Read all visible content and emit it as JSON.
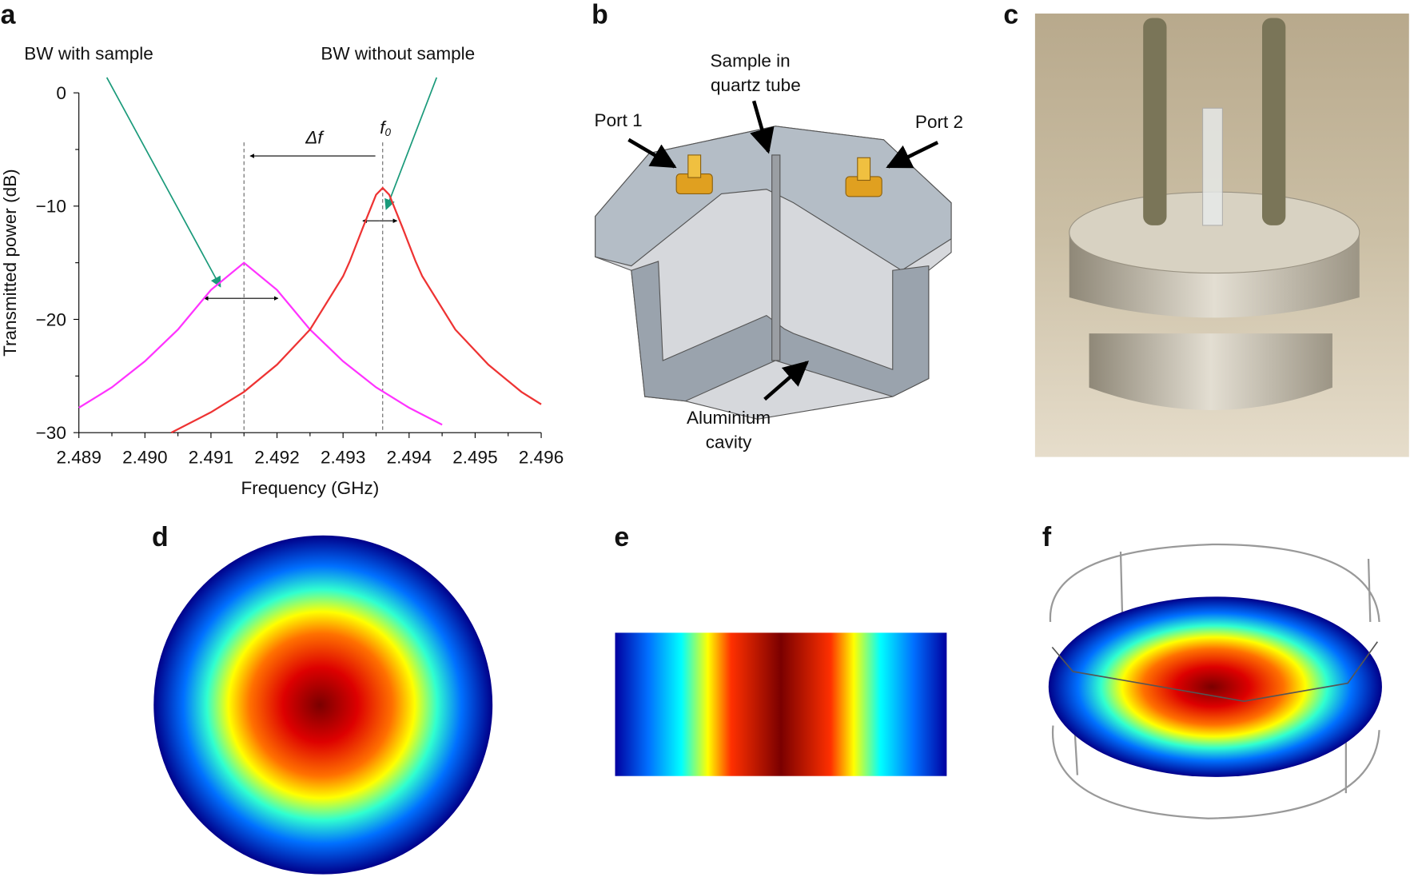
{
  "chart_data": {
    "type": "line",
    "panel_label": "a",
    "x_label": "Frequency (GHz)",
    "y_label": "Transmitted power (dB)",
    "xlim": [
      2.489,
      2.496
    ],
    "ylim": [
      -30,
      0
    ],
    "xticks": [
      {
        "value": 2.489,
        "label": "2.489"
      },
      {
        "value": 2.49,
        "label": "2.490"
      },
      {
        "value": 2.491,
        "label": "2.491"
      },
      {
        "value": 2.492,
        "label": "2.492"
      },
      {
        "value": 2.493,
        "label": "2.493"
      },
      {
        "value": 2.494,
        "label": "2.494"
      },
      {
        "value": 2.495,
        "label": "2.495"
      },
      {
        "value": 2.496,
        "label": "2.496"
      }
    ],
    "yticks": [
      {
        "value": -30,
        "label": "−30"
      },
      {
        "value": -20,
        "label": "−20"
      },
      {
        "value": -10,
        "label": "−10"
      },
      0
    ],
    "series": [
      {
        "color": "#ff33ff",
        "x": [
          2.489,
          2.4895,
          2.49,
          2.4905,
          2.491,
          2.4915,
          2.492,
          2.4925,
          2.493,
          2.4935,
          2.494,
          2.4945
        ],
        "values": [
          -27.8,
          -26.0,
          -23.7,
          -20.9,
          -17.4,
          -15.0,
          -17.4,
          -20.9,
          -23.7,
          -26.0,
          -27.8,
          -29.3
        ]
      },
      {
        "color": "#ee3333",
        "x": [
          2.4904,
          2.491,
          2.4915,
          2.492,
          2.4925,
          2.493,
          2.4931,
          2.4933,
          2.4935,
          2.4936,
          2.4937,
          2.4939,
          2.4941,
          2.4942,
          2.4947,
          2.4952,
          2.4957,
          2.496
        ],
        "values": [
          -30.0,
          -28.2,
          -26.4,
          -24.0,
          -20.9,
          -16.2,
          -14.9,
          -11.9,
          -9.0,
          -8.4,
          -9.0,
          -11.9,
          -14.9,
          -16.2,
          -20.9,
          -24.0,
          -26.4,
          -27.5
        ]
      }
    ],
    "vlines": [
      2.4915,
      2.4936
    ],
    "annotations": {
      "bw_with": "BW with sample",
      "bw_without": "BW without sample",
      "delta_f": "Δf",
      "f0": "f",
      "f0_sub": "0"
    }
  },
  "panels": {
    "b": {
      "label": "b",
      "sample": [
        "Sample in",
        "quartz tube"
      ],
      "port1": "Port 1",
      "port2": "Port 2",
      "cavity": [
        "Aluminium",
        "cavity"
      ]
    },
    "c": {
      "label": "c"
    },
    "d": {
      "label": "d"
    },
    "e": {
      "label": "e"
    },
    "f": {
      "label": "f"
    }
  }
}
